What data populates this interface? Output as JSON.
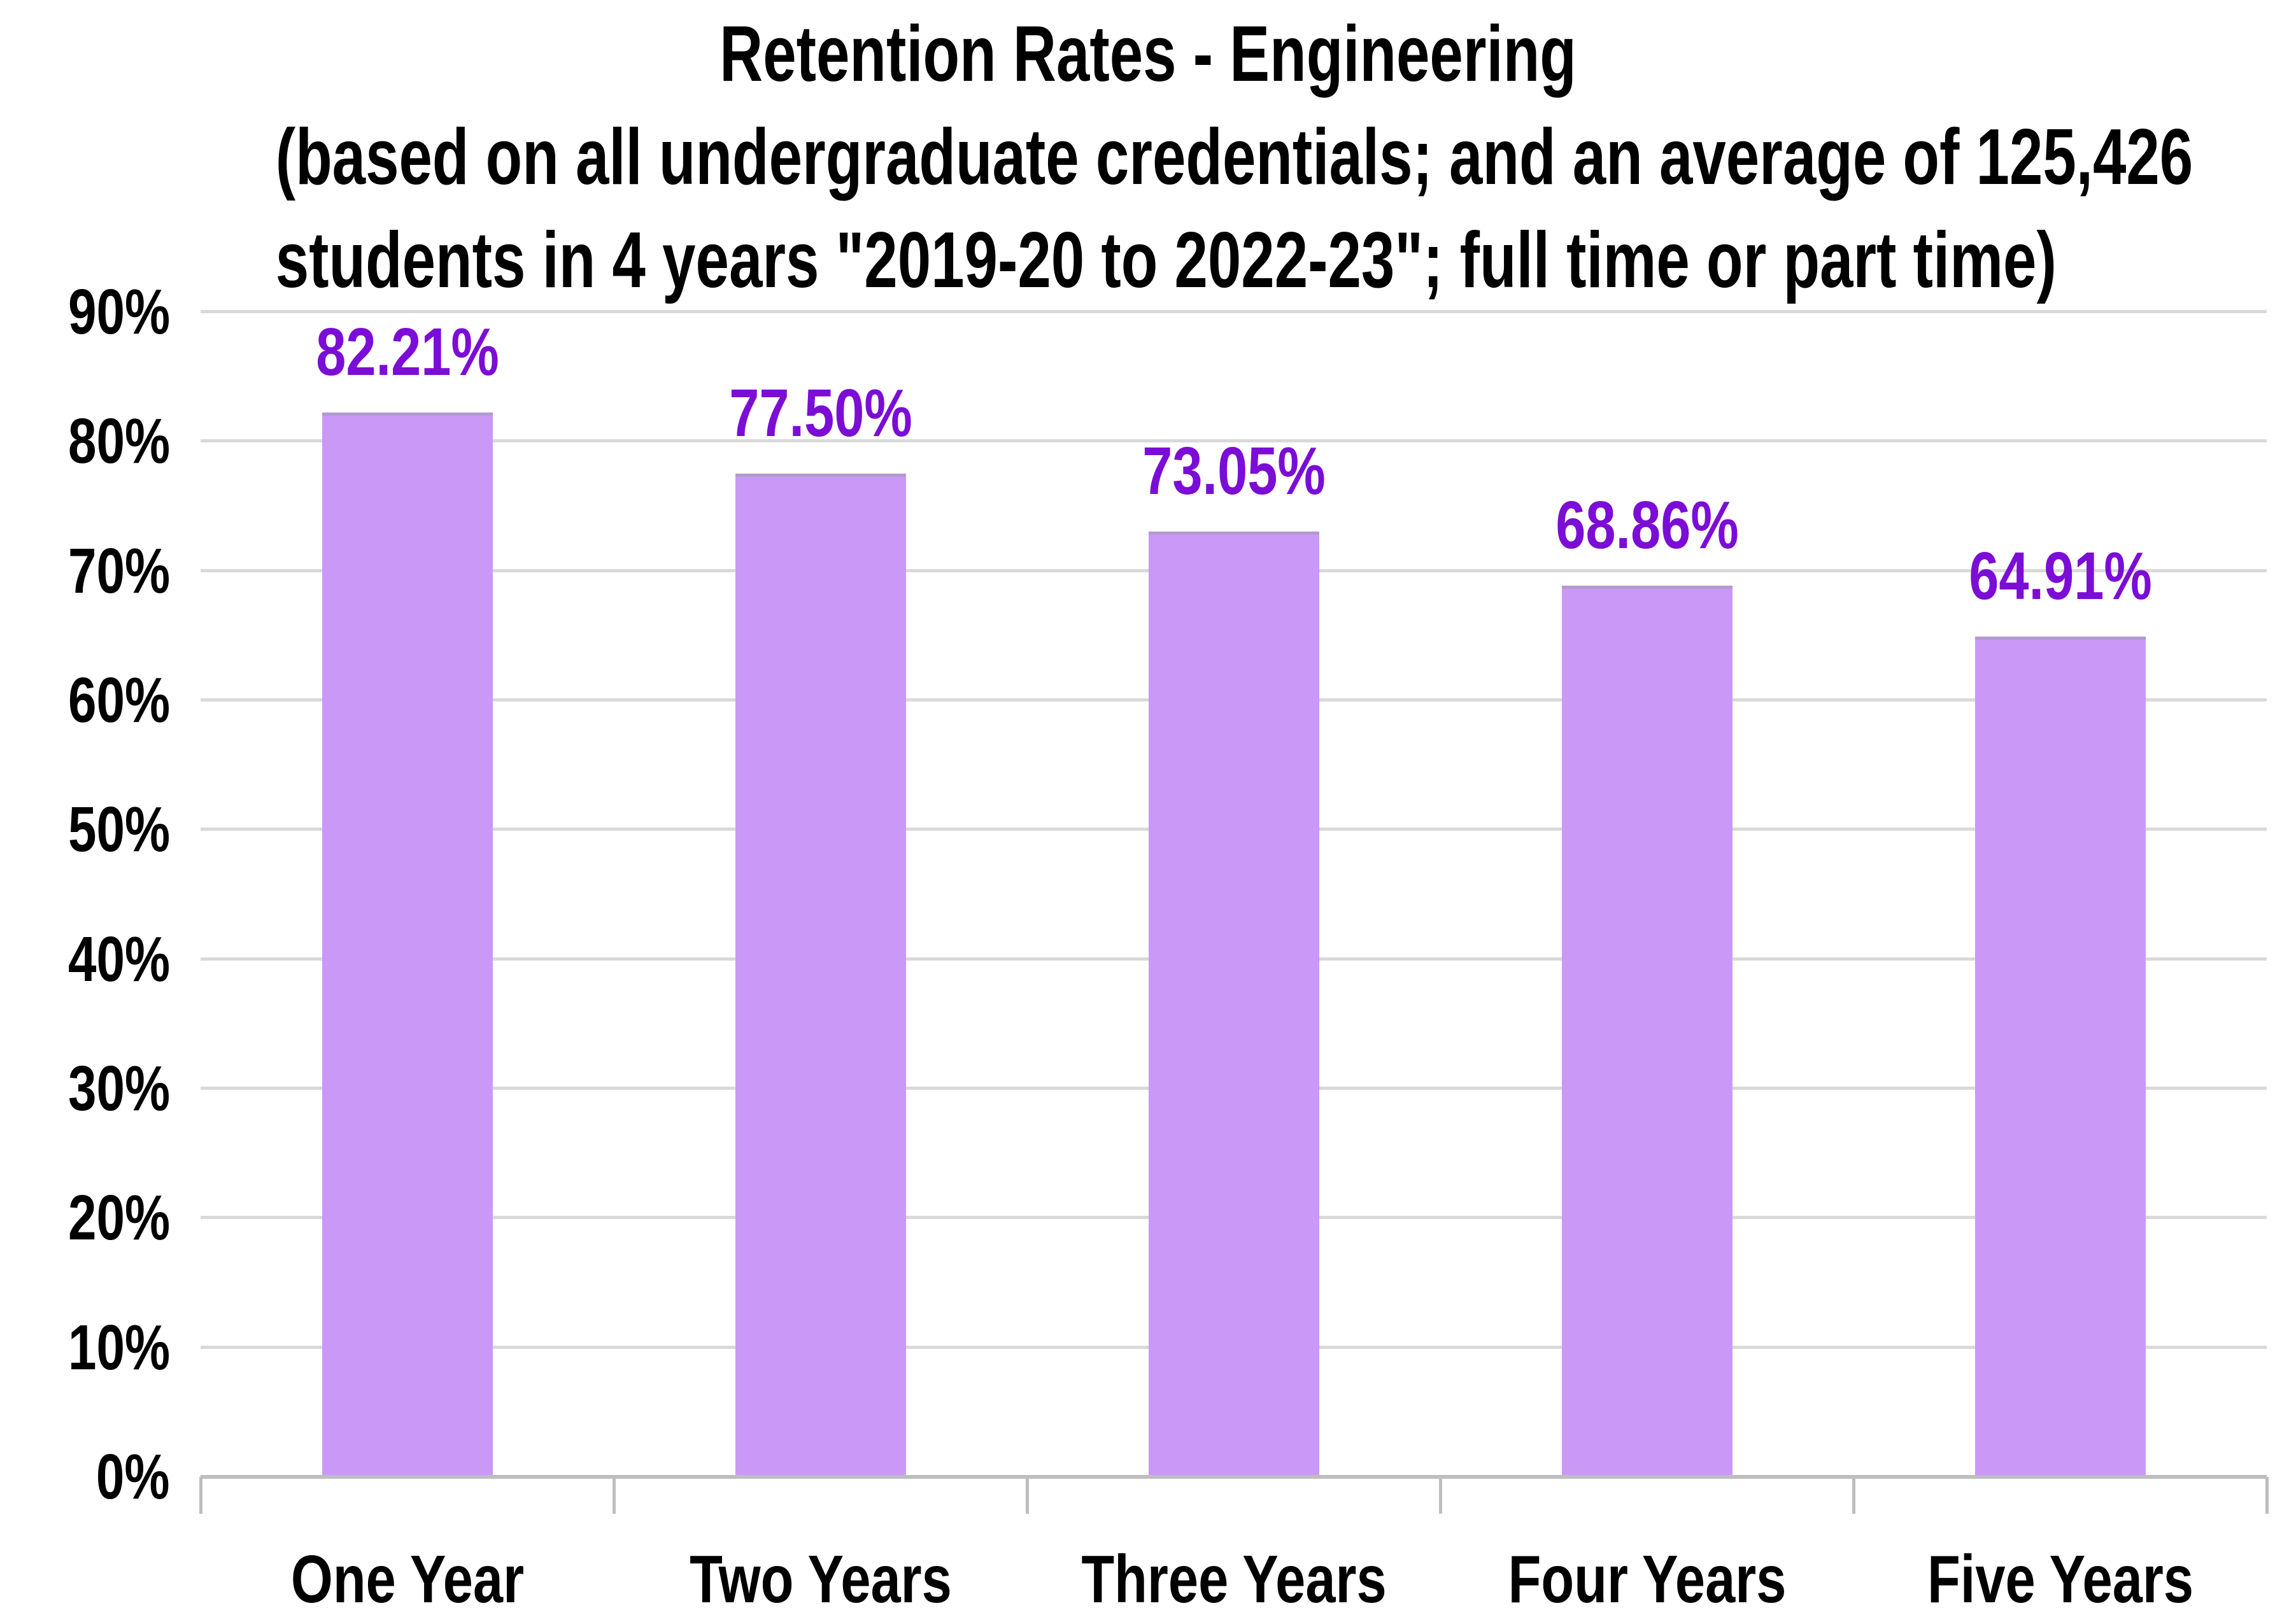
{
  "title": {
    "lines": [
      "Retention Rates - Engineering",
      "(based on all undergraduate credentials; and an average of 125,426",
      "students in 4 years \"2019-20 to 2022-23\"; full time or part time)"
    ]
  },
  "chart_data": {
    "type": "bar",
    "title": "Retention Rates - Engineering (based on all undergraduate credentials; and an average of 125,426 students in 4 years \"2019-20 to 2022-23\"; full time or part time)",
    "categories": [
      "One Year",
      "Two Years",
      "Three Years",
      "Four Years",
      "Five Years"
    ],
    "values": [
      82.21,
      77.5,
      73.05,
      68.86,
      64.91
    ],
    "value_labels": [
      "82.21%",
      "77.50%",
      "73.05%",
      "68.86%",
      "64.91%"
    ],
    "y_ticks": [
      "0%",
      "10%",
      "20%",
      "30%",
      "40%",
      "50%",
      "60%",
      "70%",
      "80%",
      "90%"
    ],
    "ylim": [
      0,
      90
    ],
    "xlabel": "",
    "ylabel": "",
    "grid": true,
    "legend": false,
    "colors": {
      "bar_fill": "#ca99f7",
      "bar_top_edge": "#b19ad0",
      "value_label": "#7b0dd6",
      "axis_text": "#000000",
      "gridline": "#d9d9d9",
      "axis_line": "#bebebe",
      "background": "#ffffff"
    }
  }
}
